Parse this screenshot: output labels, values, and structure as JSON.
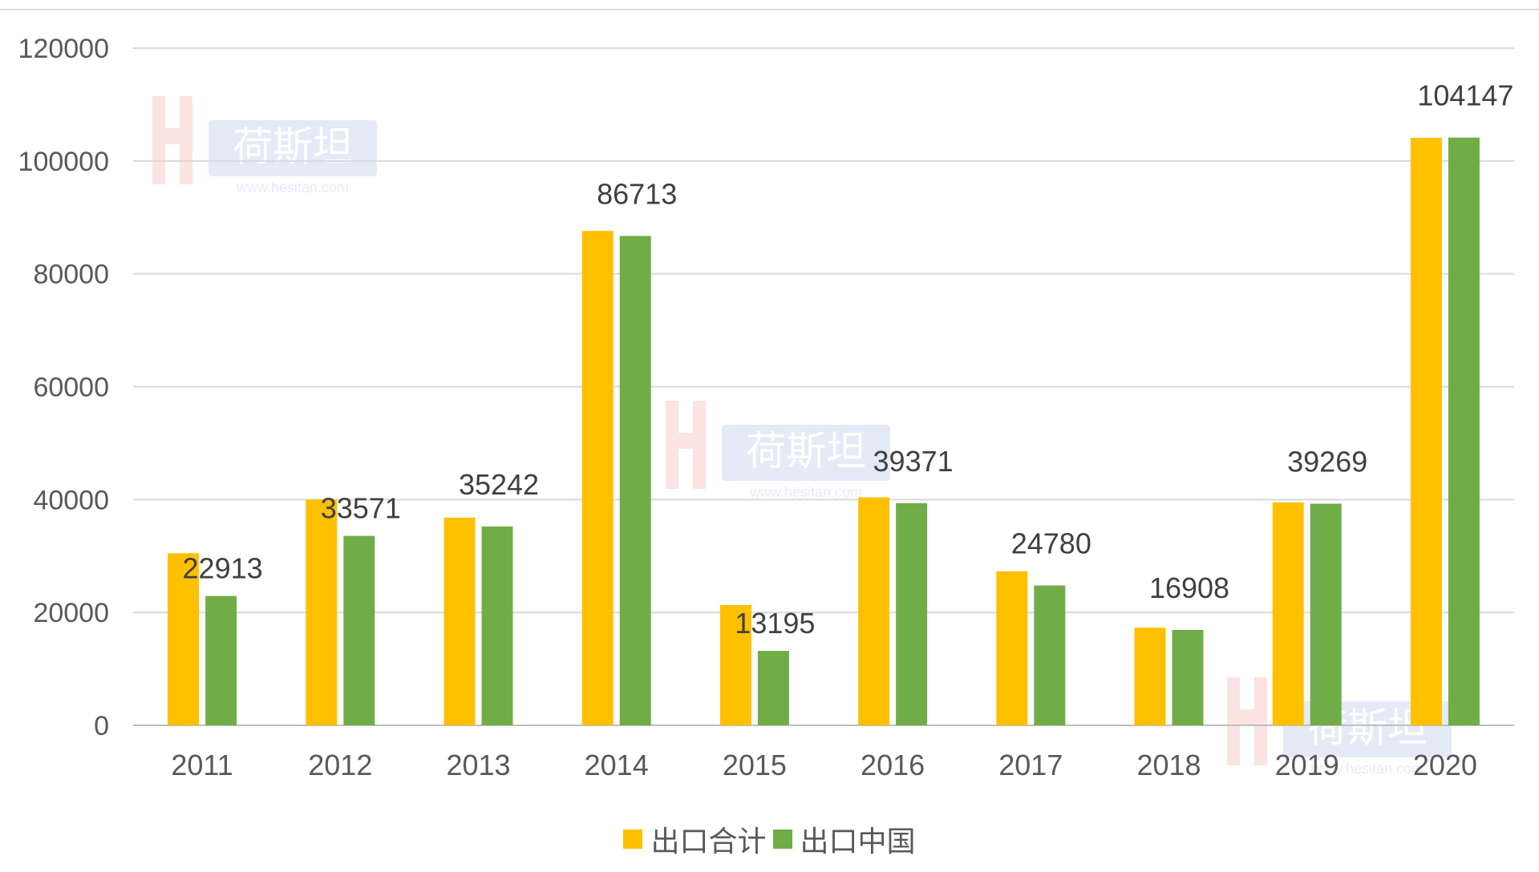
{
  "chart_data": {
    "type": "bar",
    "categories": [
      "2011",
      "2012",
      "2013",
      "2014",
      "2015",
      "2016",
      "2017",
      "2018",
      "2019",
      "2020"
    ],
    "series": [
      {
        "name": "出口合计",
        "color": "#FFC000",
        "values": [
          30500,
          40000,
          36800,
          87600,
          21300,
          40400,
          27300,
          17300,
          39500,
          104100
        ]
      },
      {
        "name": "出口中国",
        "color": "#70AD47",
        "values": [
          22913,
          33571,
          35242,
          86713,
          13195,
          39371,
          24780,
          16908,
          39269,
          104147
        ]
      }
    ],
    "data_labels": [
      "22913",
      "33571",
      "35242",
      "86713",
      "13195",
      "39371",
      "24780",
      "16908",
      "39269",
      "104147"
    ],
    "ylim": [
      0,
      120000
    ],
    "yticks": [
      "0",
      "20000",
      "40000",
      "60000",
      "80000",
      "100000",
      "120000"
    ],
    "grid": true,
    "legend_position": "bottom",
    "watermark": {
      "text": "荷斯坦",
      "url": "www.hesitan.com"
    }
  }
}
